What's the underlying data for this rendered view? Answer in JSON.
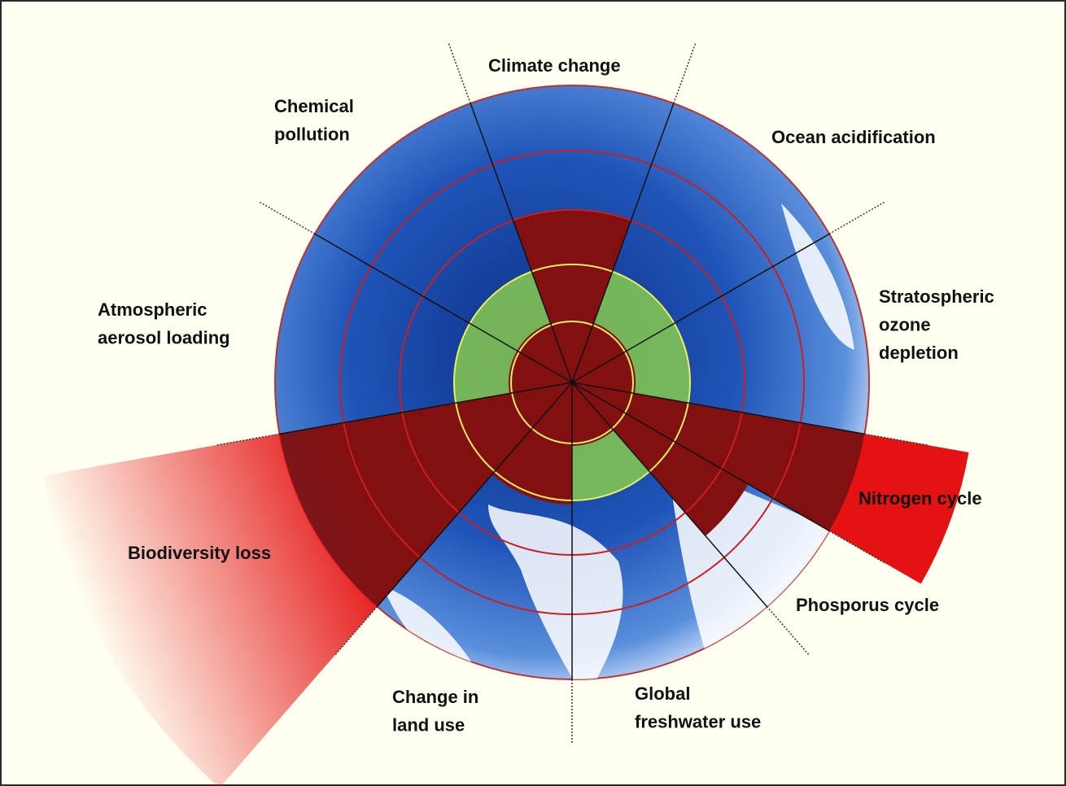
{
  "labels": [
    {
      "lines": [
        "Climate change"
      ]
    },
    {
      "lines": [
        "Chemical",
        "pollution"
      ]
    },
    {
      "lines": [
        "Ocean acidification"
      ]
    },
    {
      "lines": [
        "Stratospheric",
        "ozone",
        "depletion"
      ]
    },
    {
      "lines": [
        "Atmospheric",
        "aerosol loading"
      ]
    },
    {
      "lines": [
        "Nitrogen cycle"
      ]
    },
    {
      "lines": [
        "Biodiversity loss"
      ]
    },
    {
      "lines": [
        "Phosporus cycle"
      ]
    },
    {
      "lines": [
        "Change in",
        "land use"
      ]
    },
    {
      "lines": [
        "Global",
        "freshwater use"
      ]
    }
  ]
}
